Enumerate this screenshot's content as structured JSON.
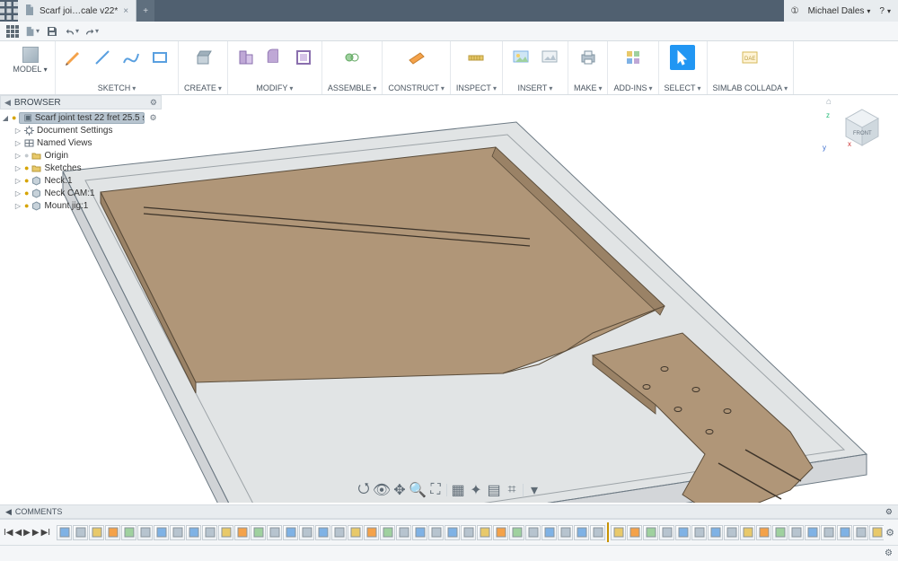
{
  "titlebar": {
    "tab_title": "Scarf joi…cale v22*",
    "user_name": "Michael Dales",
    "activity_count": "①",
    "help_glyph": "?"
  },
  "qat": {
    "icons": [
      "grid",
      "file",
      "save",
      "undo",
      "redo"
    ]
  },
  "workspace": {
    "label": "MODEL"
  },
  "ribbon_groups": [
    {
      "id": "sketch",
      "label": "SKETCH",
      "icons": [
        "sketch-pencil",
        "line",
        "spline",
        "rect"
      ]
    },
    {
      "id": "create",
      "label": "CREATE",
      "icons": [
        "extrude"
      ]
    },
    {
      "id": "modify",
      "label": "MODIFY",
      "icons": [
        "presspull",
        "fillet",
        "shell"
      ]
    },
    {
      "id": "assemble",
      "label": "ASSEMBLE",
      "icons": [
        "joint"
      ]
    },
    {
      "id": "construct",
      "label": "CONSTRUCT",
      "icons": [
        "plane"
      ]
    },
    {
      "id": "inspect",
      "label": "INSPECT",
      "icons": [
        "measure"
      ]
    },
    {
      "id": "insert",
      "label": "INSERT",
      "icons": [
        "decal",
        "image"
      ]
    },
    {
      "id": "make",
      "label": "MAKE",
      "icons": [
        "print"
      ]
    },
    {
      "id": "addins",
      "label": "ADD-INS",
      "icons": [
        "addins"
      ]
    },
    {
      "id": "select",
      "label": "SELECT",
      "icons": [
        "cursor"
      ],
      "selected": true
    },
    {
      "id": "simlab",
      "label": "SIMLAB COLLADA",
      "icons": [
        "dae"
      ]
    }
  ],
  "browser": {
    "title": "BROWSER",
    "root": "Scarf joint test 22 fret 25.5 sc…",
    "nodes": [
      {
        "label": "Document Settings",
        "icon": "gear",
        "bulb": null,
        "indent": 14
      },
      {
        "label": "Named Views",
        "icon": "views",
        "bulb": null,
        "indent": 14
      },
      {
        "label": "Origin",
        "icon": "folder",
        "bulb": "off",
        "indent": 14
      },
      {
        "label": "Sketches",
        "icon": "folder",
        "bulb": "on",
        "indent": 14
      },
      {
        "label": "Neck:1",
        "icon": "component",
        "bulb": "on",
        "indent": 14
      },
      {
        "label": "Neck CAM:1",
        "icon": "component",
        "bulb": "on",
        "indent": 14
      },
      {
        "label": "Mount jig:1",
        "icon": "component",
        "bulb": "on",
        "indent": 14
      }
    ]
  },
  "viewcube": {
    "face": "FRONT"
  },
  "navbar_icons": [
    "orbit",
    "lookat",
    "pan",
    "zoom",
    "fit",
    "sep",
    "display",
    "effects",
    "grid",
    "snap",
    "sep",
    "views"
  ],
  "comments": {
    "label": "COMMENTS"
  },
  "timeline": {
    "items_before_marker": 34,
    "items_after_marker": 20,
    "marker_after_index": 34,
    "colors": {
      "sketch": "#7fb2e5",
      "feature": "#b7c4cf",
      "component": "#e8c96a",
      "plane": "#f4a24a",
      "body": "#9fd19f"
    }
  },
  "model": {
    "stock_fill": "rgba(120,130,138,0.28)",
    "stock_stroke": "#6d7a84",
    "wood_fill": "#b09678",
    "wood_fill_dark": "#9a8266",
    "wood_stroke": "#5a4c3a",
    "slot_stroke": "#3d342a"
  },
  "status": {
    "gear_title": "Preferences"
  }
}
